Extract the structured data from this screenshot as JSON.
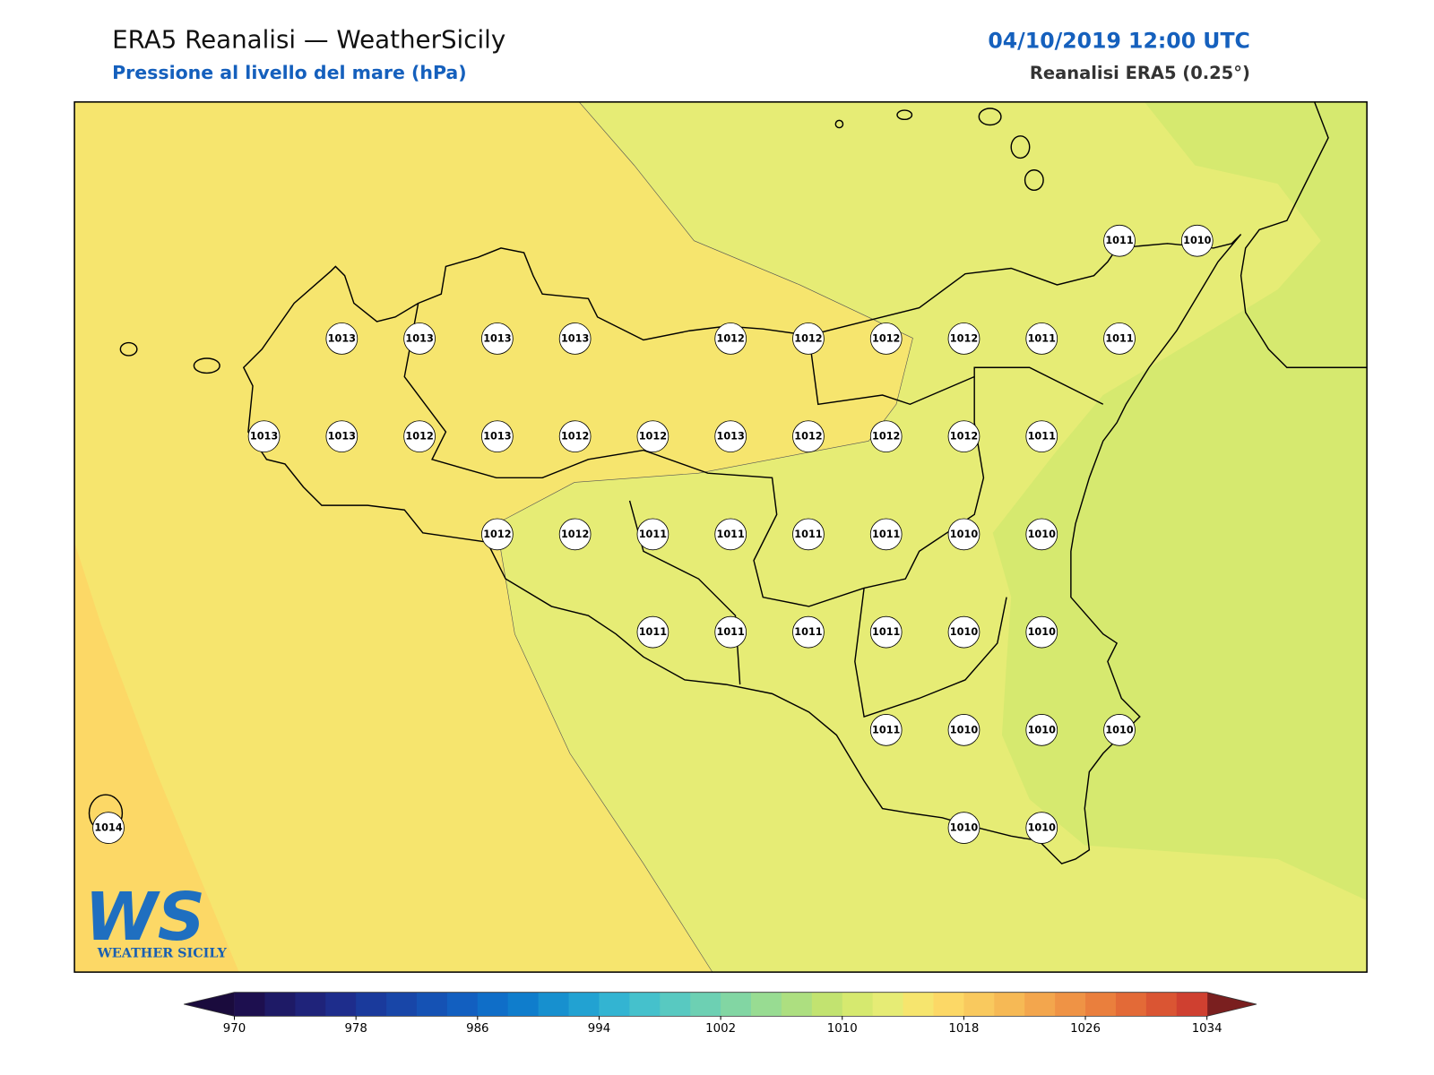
{
  "header": {
    "title": "ERA5 Reanalisi — WeatherSicily",
    "subtitle": "Pressione al livello del mare (hPa)",
    "date": "04/10/2019 12:00 UTC",
    "source": "Reanalisi ERA5 (0.25°)"
  },
  "stations": [
    [
      null,
      null,
      null,
      null,
      null,
      null,
      null,
      null,
      null,
      null,
      null,
      null,
      null,
      1011,
      1010
    ],
    [
      null,
      null,
      null,
      1013,
      1013,
      1013,
      1013,
      null,
      1012,
      1012,
      1012,
      1012,
      1011,
      1011,
      null
    ],
    [
      null,
      null,
      1013,
      1013,
      1012,
      1013,
      1012,
      1012,
      1013,
      1012,
      1012,
      1012,
      1011,
      null,
      null
    ],
    [
      null,
      null,
      null,
      null,
      null,
      1012,
      1012,
      1011,
      1011,
      1011,
      1011,
      1010,
      1010,
      null,
      null
    ],
    [
      null,
      null,
      null,
      null,
      null,
      null,
      null,
      1011,
      1011,
      1011,
      1011,
      1010,
      1010,
      null,
      null
    ],
    [
      null,
      null,
      null,
      null,
      null,
      null,
      null,
      null,
      null,
      null,
      1011,
      1010,
      1010,
      1010,
      null
    ],
    [
      1014,
      null,
      null,
      null,
      null,
      null,
      null,
      null,
      null,
      null,
      null,
      1010,
      1010,
      null,
      null
    ]
  ],
  "logo": {
    "mark": "WS",
    "text": "WEATHER SICILY"
  },
  "colorbar": {
    "lim": [
      970,
      1034
    ],
    "ticks": [
      970,
      978,
      986,
      994,
      1002,
      1010,
      1018,
      1026,
      1034
    ],
    "under": "#1a0b3d",
    "over": "#7a1f1f",
    "colors": [
      "#1d0f4f",
      "#1e1a66",
      "#1f237a",
      "#1e2d8c",
      "#1a3a9c",
      "#1846a8",
      "#1552b4",
      "#125fc0",
      "#0f6ec8",
      "#0f7dcc",
      "#1790cf",
      "#22a2d2",
      "#33b4d2",
      "#45c1cc",
      "#58c9c1",
      "#6dd0b3",
      "#82d6a3",
      "#98dc92",
      "#addf80",
      "#c2e370",
      "#d6e96f",
      "#e6ec75",
      "#f6e56e",
      "#fcd866",
      "#f9c95e",
      "#f6b955",
      "#f3a64d",
      "#ef9345",
      "#ea7f3d",
      "#e36a37",
      "#da5533",
      "#cf4030"
    ]
  }
}
